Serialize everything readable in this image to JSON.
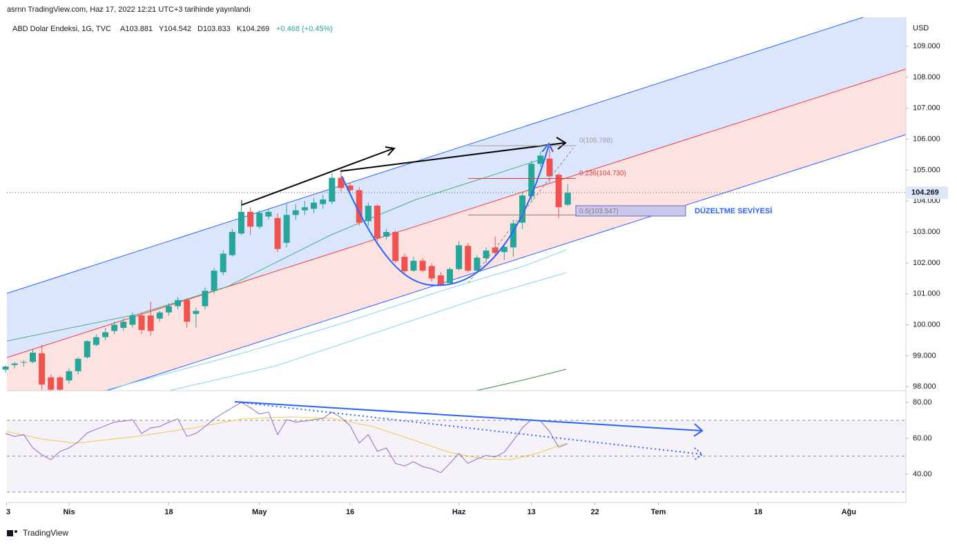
{
  "header": {
    "published": "asrnn TradingView.com, Haz 17, 2022 12:21 UTC+3 tarihinde yayınlandı",
    "symbol": "ABD Dolar Endeksi, 1G, TVC",
    "ohlc": [
      "A103.881",
      "Y104.542",
      "D103.833",
      "K104.269"
    ],
    "change": "+0.468 (+0.45%)"
  },
  "footer": "TradingView",
  "chart_data": [
    {
      "type": "candlestick",
      "y_unit": "USD",
      "up_color": "#26a69a",
      "down_color": "#ef5350",
      "x": [
        -7,
        -6,
        -5,
        -4,
        -3,
        -2,
        -1,
        0,
        1,
        2,
        3,
        4,
        5,
        6,
        7,
        8,
        9,
        10,
        11,
        12,
        13,
        14,
        15,
        16,
        17,
        18,
        19,
        20,
        21,
        22,
        23,
        24,
        25,
        26,
        27,
        28,
        29,
        30,
        31,
        32,
        33,
        34,
        35,
        36,
        37,
        38,
        39,
        40,
        41,
        42,
        43,
        44,
        45,
        46,
        47,
        48,
        49,
        50,
        51,
        52,
        53,
        54,
        55
      ],
      "open": [
        98.55,
        98.7,
        98.78,
        98.8,
        99.08,
        98.3,
        98.3,
        98.2,
        98.5,
        98.95,
        99.35,
        99.6,
        99.8,
        99.9,
        100.0,
        100.3,
        100.3,
        100.2,
        100.4,
        100.6,
        100.8,
        100.35,
        100.6,
        101.1,
        101.7,
        102.25,
        102.95,
        103.65,
        103.17,
        103.5,
        103.45,
        102.65,
        103.55,
        103.7,
        103.75,
        103.9,
        103.98,
        104.75,
        104.5,
        104.35,
        103.35,
        103.85,
        102.85,
        103.0,
        102.2,
        101.75,
        102.07,
        101.9,
        101.6,
        101.35,
        101.8,
        102.55,
        101.75,
        102.15,
        102.5,
        102.35,
        102.5,
        103.3,
        104.15,
        105.2,
        105.37,
        104.85,
        103.881
      ],
      "high": [
        98.7,
        98.8,
        98.85,
        99.2,
        99.35,
        98.4,
        98.35,
        98.6,
        98.95,
        99.5,
        99.7,
        99.9,
        100.1,
        100.2,
        100.4,
        100.4,
        100.75,
        100.45,
        100.7,
        100.9,
        100.85,
        100.55,
        101.2,
        101.85,
        102.4,
        103.1,
        103.9,
        103.8,
        103.7,
        103.75,
        103.6,
        103.9,
        103.9,
        104.0,
        104.1,
        104.2,
        104.9,
        105.0,
        104.6,
        104.45,
        103.95,
        103.9,
        103.1,
        103.05,
        102.3,
        102.2,
        102.15,
        102.0,
        101.7,
        101.85,
        102.7,
        102.65,
        102.25,
        102.5,
        102.85,
        102.6,
        103.4,
        104.3,
        105.3,
        105.6,
        105.78,
        104.9,
        104.542
      ],
      "low": [
        98.45,
        98.6,
        98.65,
        98.75,
        97.9,
        97.85,
        97.85,
        98.1,
        98.4,
        98.9,
        99.3,
        99.5,
        99.7,
        99.8,
        99.9,
        99.7,
        99.65,
        100.1,
        100.3,
        100.5,
        99.9,
        99.9,
        100.5,
        101.0,
        101.6,
        102.2,
        102.9,
        102.9,
        103.1,
        103.4,
        102.35,
        102.5,
        103.4,
        103.55,
        103.6,
        103.75,
        103.9,
        104.3,
        104.2,
        103.2,
        103.2,
        102.7,
        102.75,
        102.0,
        101.65,
        101.7,
        101.7,
        101.4,
        101.25,
        101.3,
        101.75,
        101.7,
        101.65,
        102.0,
        102.25,
        102.1,
        102.2,
        103.1,
        104.0,
        105.1,
        104.6,
        103.45,
        103.833
      ],
      "close": [
        98.65,
        98.75,
        98.8,
        99.1,
        98.07,
        97.9,
        97.9,
        98.5,
        98.9,
        99.47,
        99.6,
        99.76,
        100.0,
        100.1,
        100.3,
        99.83,
        99.8,
        100.4,
        100.6,
        100.8,
        100.1,
        100.45,
        101.1,
        101.75,
        102.3,
        103.0,
        103.65,
        103.17,
        103.62,
        103.65,
        102.45,
        103.55,
        103.7,
        103.8,
        103.95,
        104.05,
        104.75,
        104.42,
        104.35,
        103.3,
        103.85,
        102.8,
        103.0,
        102.06,
        101.73,
        102.07,
        101.75,
        101.5,
        101.3,
        101.8,
        102.57,
        101.75,
        102.17,
        102.4,
        102.32,
        102.52,
        103.28,
        104.18,
        105.2,
        105.47,
        104.8,
        103.8,
        104.269
      ],
      "xlim": [
        -6.855,
        92.3
      ],
      "xticks": [
        {
          "value": -6.9,
          "label": "3"
        },
        {
          "value": 0,
          "label": "Nis"
        },
        {
          "value": 11,
          "label": "18"
        },
        {
          "value": 21,
          "label": "May"
        },
        {
          "value": 31,
          "label": "16"
        },
        {
          "value": 43,
          "label": "Haz"
        },
        {
          "value": 51,
          "label": "13"
        },
        {
          "value": 58,
          "label": "22"
        },
        {
          "value": 65,
          "label": "Tem"
        },
        {
          "value": 76,
          "label": "18"
        },
        {
          "value": 86,
          "label": "Ağu"
        }
      ],
      "ylim": [
        97.87,
        109.94
      ],
      "yticks": [
        {
          "value": 98,
          "label": "98.000"
        },
        {
          "value": 99,
          "label": "99.000"
        },
        {
          "value": 100,
          "label": "100.000"
        },
        {
          "value": 101,
          "label": "101.000"
        },
        {
          "value": 102,
          "label": "102.000"
        },
        {
          "value": 103,
          "label": "103.000"
        },
        {
          "value": 104,
          "label": "104.000"
        },
        {
          "value": 105,
          "label": "105.000"
        },
        {
          "value": 106,
          "label": "106.000"
        },
        {
          "value": 107,
          "label": "107.000"
        },
        {
          "value": 108,
          "label": "108.000"
        },
        {
          "value": 109,
          "label": "109.000"
        }
      ],
      "grid": false,
      "last_price": {
        "value": 104.269,
        "label": "104.269"
      },
      "fib_levels": [
        {
          "value": 105.788,
          "label": "0(105.788)",
          "color": "#9e9e9e"
        },
        {
          "value": 104.73,
          "label": "0.236(104.730)",
          "color": "#e53935"
        },
        {
          "value": 103.547,
          "label": "0.5(103.547)",
          "color": "#7e7e7e"
        }
      ],
      "annotation": "DÜZELTME SEVİYESİ"
    },
    {
      "type": "line",
      "color": "#8e6bc8",
      "x": [
        -7,
        -6,
        -5,
        -4,
        -3,
        -2,
        -1,
        0,
        1,
        2,
        3,
        4,
        5,
        6,
        7,
        8,
        9,
        10,
        11,
        12,
        13,
        14,
        15,
        16,
        17,
        18,
        19,
        20,
        21,
        22,
        23,
        24,
        25,
        26,
        27,
        28,
        29,
        30,
        31,
        32,
        33,
        34,
        35,
        36,
        37,
        38,
        39,
        40,
        41,
        42,
        43,
        44,
        45,
        46,
        47,
        48,
        49,
        50,
        51,
        52,
        53,
        54,
        55
      ],
      "values": [
        62.7,
        61,
        62,
        54.6,
        50.8,
        48,
        52.7,
        54.6,
        58,
        63,
        65,
        67,
        69,
        69.6,
        70.4,
        62.7,
        65.8,
        66.5,
        69,
        70.8,
        61,
        62.7,
        66.5,
        70.8,
        74,
        77,
        80,
        77,
        73.5,
        74.6,
        62,
        70.4,
        69,
        69.6,
        70.4,
        71,
        74.6,
        71.5,
        67,
        57.3,
        62,
        52.7,
        54.6,
        46,
        44.6,
        46.9,
        44.2,
        43,
        40.8,
        46,
        51.5,
        46,
        48.5,
        50.4,
        49.6,
        52.3,
        58.8,
        65.8,
        70.4,
        69.6,
        63.8,
        55,
        57
      ],
      "ylim": [
        24.2,
        86.5
      ],
      "yticks": [
        {
          "value": 40,
          "label": "40.00"
        },
        {
          "value": 60,
          "label": "60.00"
        },
        {
          "value": 80,
          "label": "80.00"
        }
      ],
      "bands": [
        70,
        50,
        30
      ]
    }
  ]
}
